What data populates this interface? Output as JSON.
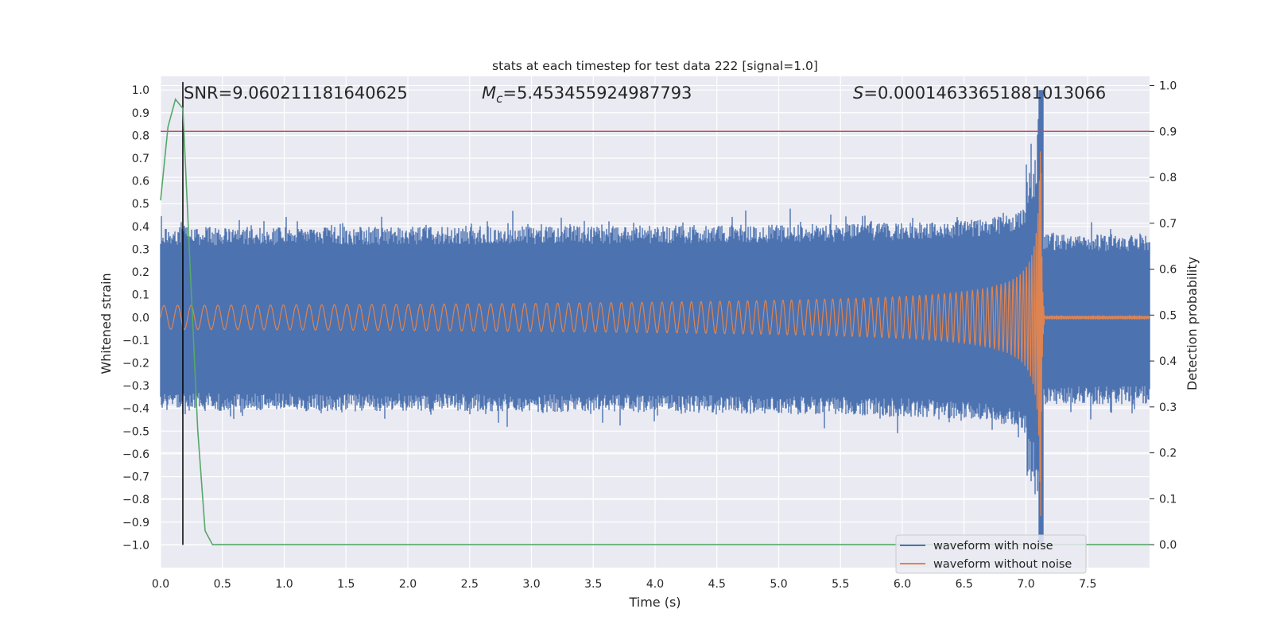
{
  "chart_data": {
    "type": "line",
    "title": "stats at each timestep for test data 222 [signal=1.0]",
    "xlabel": "Time (s)",
    "ylabel_left": "Whitened strain",
    "ylabel_right": "Detection probability",
    "xlim": [
      0.0,
      8.0
    ],
    "ylim_left": [
      -1.1,
      1.06
    ],
    "ylim_right": [
      -0.05,
      1.02
    ],
    "x_ticks": [
      "0.0",
      "0.5",
      "1.0",
      "1.5",
      "2.0",
      "2.5",
      "3.0",
      "3.5",
      "4.0",
      "4.5",
      "5.0",
      "5.5",
      "6.0",
      "6.5",
      "7.0",
      "7.5"
    ],
    "y_left_ticks": [
      "1.0",
      "0.9",
      "0.8",
      "0.7",
      "0.6",
      "0.5",
      "0.4",
      "0.3",
      "0.2",
      "0.1",
      "0.0",
      "−0.1",
      "−0.2",
      "−0.3",
      "−0.4",
      "−0.5",
      "−0.6",
      "−0.7",
      "−0.8",
      "−0.9",
      "−1.0"
    ],
    "y_right_ticks": [
      "1.0",
      "0.9",
      "0.8",
      "0.7",
      "0.6",
      "0.5",
      "0.4",
      "0.3",
      "0.2",
      "0.1",
      "0.0"
    ],
    "annotations": {
      "snr": "SNR=9.060211181640625",
      "mc_symbol": "M",
      "mc_sub": "c",
      "mc_value": "=5.453455924987793",
      "s_symbol": "S",
      "s_value": "=0.00014633651881013066"
    },
    "series": [
      {
        "name": "waveform with noise",
        "color": "#4c72b0",
        "axis": "left",
        "noise_envelope": 0.4,
        "merger_time": 7.12,
        "peak": [
          -1.0,
          1.0
        ]
      },
      {
        "name": "waveform without noise",
        "color": "#dd8452",
        "axis": "left",
        "start_amplitude": 0.05,
        "merger_time": 7.12,
        "peak": [
          -0.97,
          0.73
        ]
      },
      {
        "name": "detection probability",
        "color": "#55a868",
        "axis": "right",
        "x": [
          0.0,
          0.06,
          0.12,
          0.18,
          0.24,
          0.3,
          0.36,
          0.42,
          8.0
        ],
        "y": [
          0.75,
          0.91,
          0.97,
          0.95,
          0.6,
          0.25,
          0.03,
          0.0,
          0.0
        ]
      }
    ],
    "threshold_line": {
      "axis": "right",
      "value": 0.9,
      "color": "#c44e52"
    },
    "vertical_marker": {
      "x": 0.18,
      "color": "#000000"
    }
  }
}
